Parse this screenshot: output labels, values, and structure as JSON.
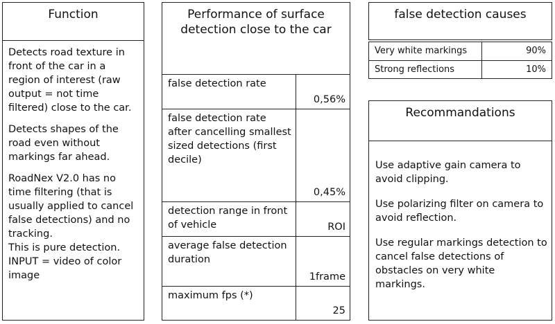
{
  "function": {
    "title": "Function",
    "paragraphs": [
      "Detects road texture in front of the car in a region of interest (raw output = not time filtered) close to the car.",
      "Detects shapes of the road even without markings far ahead.",
      "RoadNex V2.0 has no time filtering (that is usually applied to cancel false detections) and no tracking.",
      "This is pure detection.",
      "INPUT = video of color image"
    ]
  },
  "performance": {
    "title": "Performance of surface detection close to the car",
    "rows": [
      {
        "label": "false detection rate",
        "value": "0,56%"
      },
      {
        "label": "false detection rate after cancelling smallest sized detections (first decile)",
        "value": "0,45%"
      },
      {
        "label": "detection range in front of vehicle",
        "value": "ROI"
      },
      {
        "label": "average false detection duration",
        "value": "1frame"
      },
      {
        "label": "maximum fps (*)",
        "value": "25"
      }
    ]
  },
  "causes": {
    "title": "false detection  causes",
    "rows": [
      {
        "label": "Very white markings",
        "value": "90%"
      },
      {
        "label": "Strong reflections",
        "value": "10%"
      }
    ]
  },
  "recommendations": {
    "title": "Recommandations",
    "items": [
      "Use adaptive gain camera to avoid clipping.",
      "Use polarizing filter on camera to avoid reflection.",
      "Use regular markings detection to cancel false detections of obstacles on very white markings."
    ]
  }
}
